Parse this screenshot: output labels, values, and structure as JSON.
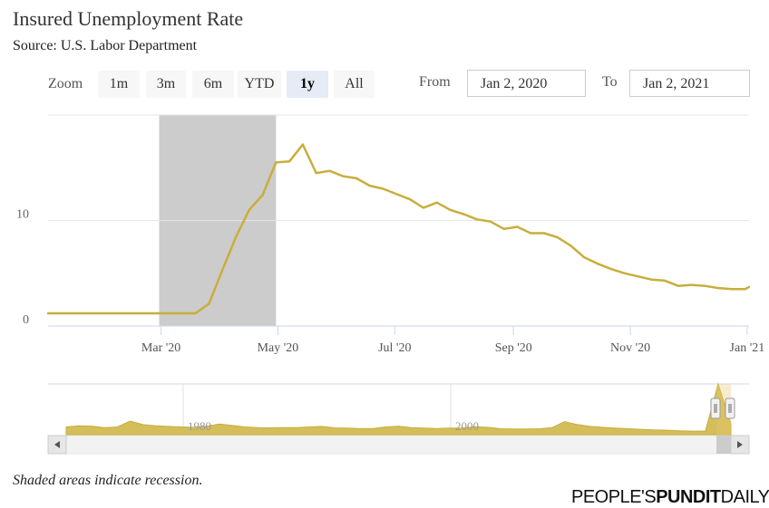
{
  "title": "Insured Unemployment Rate",
  "subtitle": "Source: U.S. Labor Department",
  "zoom": {
    "label": "Zoom",
    "buttons": [
      "1m",
      "3m",
      "6m",
      "YTD",
      "1y",
      "All"
    ],
    "active": "1y"
  },
  "range": {
    "from_label": "From",
    "from_value": "Jan 2, 2020",
    "to_label": "To",
    "to_value": "Jan 2, 2021"
  },
  "footnote": "Shaded areas indicate recession.",
  "brand": {
    "part1": "PEOPLE'S",
    "part2": "PUNDIT",
    "part3": "DAILY"
  },
  "colors": {
    "series": "#c8ae3c",
    "recession": "#cccccc",
    "navigator_fill": "#d4be5a",
    "active_button": "#e6ebf5"
  },
  "chart_data": {
    "type": "line",
    "title": "Insured Unemployment Rate",
    "subtitle": "Source: U.S. Labor Department",
    "xlabel": "",
    "ylabel": "",
    "x_ticks": [
      "Mar '20",
      "May '20",
      "Jul '20",
      "Sep '20",
      "Nov '20",
      "Jan '21"
    ],
    "y_ticks": [
      0,
      10
    ],
    "ylim": [
      0,
      20
    ],
    "xlim": [
      "2020-01-02",
      "2021-01-02"
    ],
    "grid": "horizontal",
    "recession_band": [
      "2020-02-29",
      "2020-04-30"
    ],
    "series": [
      {
        "points": [
          [
            "2020-01-02",
            1.2
          ],
          [
            "2020-01-30",
            1.2
          ],
          [
            "2020-02-27",
            1.2
          ],
          [
            "2020-03-05",
            1.2
          ],
          [
            "2020-03-12",
            1.2
          ],
          [
            "2020-03-19",
            1.2
          ],
          [
            "2020-03-26",
            2.1
          ],
          [
            "2020-04-02",
            5.3
          ],
          [
            "2020-04-09",
            8.4
          ],
          [
            "2020-04-16",
            11.0
          ],
          [
            "2020-04-23",
            12.4
          ],
          [
            "2020-04-30",
            15.5
          ],
          [
            "2020-05-07",
            15.6
          ],
          [
            "2020-05-14",
            17.2
          ],
          [
            "2020-05-21",
            14.5
          ],
          [
            "2020-05-28",
            14.7
          ],
          [
            "2020-06-04",
            14.2
          ],
          [
            "2020-06-11",
            14.0
          ],
          [
            "2020-06-18",
            13.3
          ],
          [
            "2020-06-25",
            13.0
          ],
          [
            "2020-07-02",
            12.5
          ],
          [
            "2020-07-09",
            12.0
          ],
          [
            "2020-07-16",
            11.2
          ],
          [
            "2020-07-23",
            11.7
          ],
          [
            "2020-07-30",
            11.0
          ],
          [
            "2020-08-06",
            10.6
          ],
          [
            "2020-08-13",
            10.1
          ],
          [
            "2020-08-20",
            9.9
          ],
          [
            "2020-08-27",
            9.2
          ],
          [
            "2020-09-03",
            9.4
          ],
          [
            "2020-09-10",
            8.8
          ],
          [
            "2020-09-17",
            8.8
          ],
          [
            "2020-09-24",
            8.4
          ],
          [
            "2020-10-01",
            7.6
          ],
          [
            "2020-10-08",
            6.5
          ],
          [
            "2020-10-15",
            5.9
          ],
          [
            "2020-10-22",
            5.4
          ],
          [
            "2020-10-29",
            5.0
          ],
          [
            "2020-11-05",
            4.7
          ],
          [
            "2020-11-12",
            4.4
          ],
          [
            "2020-11-19",
            4.3
          ],
          [
            "2020-11-26",
            3.8
          ],
          [
            "2020-12-03",
            3.9
          ],
          [
            "2020-12-10",
            3.8
          ],
          [
            "2020-12-17",
            3.6
          ],
          [
            "2020-12-24",
            3.5
          ],
          [
            "2020-12-31",
            3.5
          ],
          [
            "2021-01-02",
            3.7
          ]
        ]
      }
    ],
    "navigator": {
      "labels": [
        "1980",
        "2000"
      ],
      "values": [
        2.6,
        3.0,
        2.9,
        2.4,
        2.6,
        4.6,
        3.4,
        3.0,
        2.8,
        2.6,
        2.5,
        2.9,
        3.6,
        3.1,
        2.6,
        2.4,
        2.3,
        2.4,
        2.4,
        2.6,
        2.8,
        2.3,
        2.2,
        2.1,
        2.1,
        2.6,
        2.9,
        2.4,
        2.2,
        2.1,
        2.2,
        2.2,
        2.7,
        2.5,
        2.0,
        1.9,
        1.9,
        2.0,
        2.4,
        4.4,
        3.4,
        2.8,
        2.5,
        2.2,
        2.0,
        1.8,
        1.6,
        1.5,
        1.3,
        1.2,
        1.2,
        17.2,
        3.7
      ]
    }
  }
}
